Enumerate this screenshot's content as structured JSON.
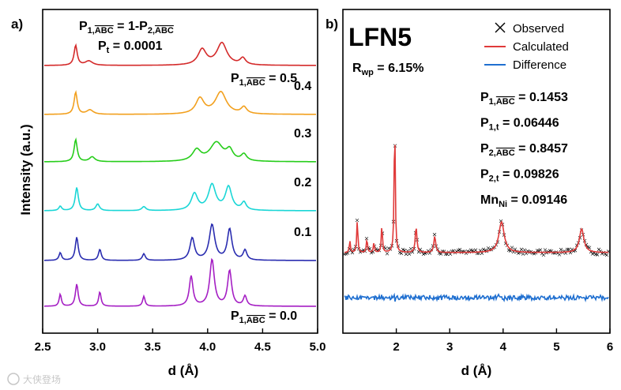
{
  "chart_data": [
    {
      "panel": "a)",
      "type": "line",
      "xlabel": "d (Å)",
      "ylabel": "Intensity (a.u.)",
      "xlim": [
        2.5,
        5.0
      ],
      "xticks": [
        "2.5",
        "3.0",
        "3.5",
        "4.0",
        "4.5",
        "5.0"
      ],
      "annotation_line1": {
        "p": "P",
        "sub1": "1,",
        "over1": "ABC",
        "mid": " = 1-P",
        "sub2": "2,",
        "over2": "ABC"
      },
      "annotation_line2": {
        "p": "P",
        "sub": "t",
        "rest": " = 0.0001"
      },
      "series": [
        {
          "name": "0.0",
          "label": "= 0.0",
          "color": "#a51fc4",
          "offset": 0,
          "peaks": [
            [
              2.66,
              0.55,
              0.012
            ],
            [
              2.81,
              1.0,
              0.015
            ],
            [
              3.02,
              0.65,
              0.013
            ],
            [
              3.42,
              0.45,
              0.013
            ],
            [
              3.85,
              1.35,
              0.02
            ],
            [
              4.04,
              2.1,
              0.025
            ],
            [
              4.2,
              1.6,
              0.022
            ],
            [
              4.34,
              0.45,
              0.018
            ]
          ]
        },
        {
          "name": "0.1",
          "label": "0.1",
          "color": "#2a2db0",
          "offset": 1,
          "peaks": [
            [
              2.66,
              0.35,
              0.014
            ],
            [
              2.81,
              1.05,
              0.016
            ],
            [
              3.02,
              0.5,
              0.015
            ],
            [
              3.42,
              0.3,
              0.016
            ],
            [
              3.86,
              1.0,
              0.025
            ],
            [
              4.04,
              1.6,
              0.03
            ],
            [
              4.2,
              1.4,
              0.025
            ],
            [
              4.34,
              0.45,
              0.02
            ]
          ]
        },
        {
          "name": "0.2",
          "label": "0.2",
          "color": "#1ad6d6",
          "offset": 2,
          "peaks": [
            [
              2.66,
              0.2,
              0.016
            ],
            [
              2.81,
              1.05,
              0.017
            ],
            [
              3.0,
              0.3,
              0.02
            ],
            [
              3.42,
              0.18,
              0.022
            ],
            [
              3.88,
              0.75,
              0.035
            ],
            [
              4.04,
              1.15,
              0.04
            ],
            [
              4.19,
              1.05,
              0.035
            ],
            [
              4.33,
              0.35,
              0.025
            ]
          ]
        },
        {
          "name": "0.3",
          "label": "0.3",
          "color": "#26cd1a",
          "offset": 3,
          "peaks": [
            [
              2.8,
              1.0,
              0.017
            ],
            [
              2.95,
              0.22,
              0.03
            ],
            [
              3.9,
              0.5,
              0.045
            ],
            [
              4.08,
              0.85,
              0.07
            ],
            [
              4.2,
              0.45,
              0.035
            ],
            [
              4.33,
              0.3,
              0.03
            ]
          ]
        },
        {
          "name": "0.4",
          "label": "0.4",
          "color": "#f2a01e",
          "offset": 4,
          "peaks": [
            [
              2.8,
              1.0,
              0.017
            ],
            [
              2.93,
              0.2,
              0.035
            ],
            [
              3.93,
              0.7,
              0.045
            ],
            [
              4.12,
              1.0,
              0.06
            ],
            [
              4.33,
              0.3,
              0.03
            ]
          ]
        },
        {
          "name": "0.5",
          "label": "0.5",
          "color": "#d42a2a",
          "offset": 5,
          "peaks": [
            [
              2.8,
              0.9,
              0.017
            ],
            [
              2.92,
              0.2,
              0.04
            ],
            [
              3.95,
              0.7,
              0.045
            ],
            [
              4.13,
              1.0,
              0.055
            ],
            [
              4.32,
              0.3,
              0.03
            ]
          ]
        }
      ],
      "series_label_prefix_top": {
        "p": "P",
        "sub": "1,",
        "over": "ABC",
        "rest": " = 0.5"
      }
    },
    {
      "panel": "b)",
      "type": "line",
      "title": "LFN5",
      "xlabel": "d (Å)",
      "xlim": [
        1.0,
        6.0
      ],
      "xticks": [
        "2",
        "3",
        "4",
        "5",
        "6"
      ],
      "legend": [
        "Observed",
        "Calculated",
        "Difference"
      ],
      "legend_placement": "top-right",
      "rwp": {
        "r": "R",
        "sub": "wp",
        "rest": " = 6.15%"
      },
      "parameters": [
        {
          "p": "P",
          "sub": "1,",
          "over": "ABC",
          "value": " = 0.1453"
        },
        {
          "p": "P",
          "sub": "1,t",
          "over": "",
          "value": " = 0.06446"
        },
        {
          "p": "P",
          "sub": "2,",
          "over": "ABC",
          "value": " = 0.8457"
        },
        {
          "p": "P",
          "sub": "2,t",
          "over": "",
          "value": " = 0.09826"
        },
        {
          "p": "Mn",
          "sub": "Ni",
          "over": "",
          "value": " = 0.09146"
        }
      ],
      "colors": {
        "observed": "#000000",
        "calculated": "#e03a3a",
        "difference": "#1f6fd0",
        "title": "#c9a227"
      },
      "peaks": [
        [
          1.13,
          0.25,
          0.012
        ],
        [
          1.27,
          0.7,
          0.012
        ],
        [
          1.45,
          0.3,
          0.012
        ],
        [
          1.58,
          0.2,
          0.012
        ],
        [
          1.73,
          0.6,
          0.012
        ],
        [
          1.97,
          2.9,
          0.012
        ],
        [
          2.37,
          0.55,
          0.018
        ],
        [
          2.72,
          0.35,
          0.02
        ],
        [
          3.97,
          0.65,
          0.06
        ],
        [
          5.47,
          0.5,
          0.05
        ]
      ]
    }
  ]
}
